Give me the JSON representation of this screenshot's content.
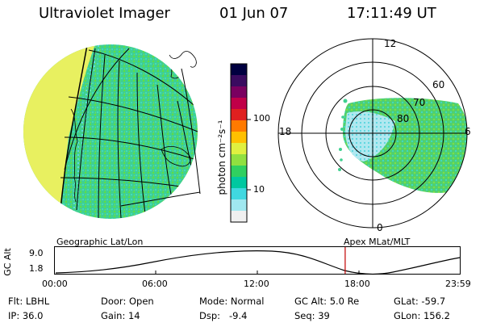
{
  "header": {
    "title": "Ultraviolet Imager",
    "date": "01 Jun 07",
    "time": "17:11:49 UT"
  },
  "colorbar": {
    "label": "photon cm⁻²s⁻¹",
    "ticks": [
      "100",
      "10"
    ],
    "colors": [
      "#000040",
      "#3a0b60",
      "#7a0060",
      "#c00048",
      "#e02020",
      "#ff7a00",
      "#ffc000",
      "#e0f040",
      "#90e040",
      "#30d060",
      "#00c8a0",
      "#40d8e0",
      "#a0e8f0",
      "#f0f0f0"
    ]
  },
  "globe_view": {
    "caption": "Geographic Lat/Lon",
    "dayside_color": "#e8f060",
    "aurora_color": "#40d090"
  },
  "polar_view": {
    "caption": "Apex  MLat/MLT",
    "mlt_labels": {
      "top": "12",
      "left": "18",
      "right": "6",
      "bottom": "0"
    },
    "lat_labels": [
      "60",
      "70",
      "80"
    ]
  },
  "orbit_plot": {
    "ylabel": "GC Alt",
    "yticks": [
      "9.0",
      "1.8"
    ],
    "xticks": [
      "00:00",
      "06:00",
      "12:00",
      "18:00",
      "23:59"
    ],
    "marker_color": "#c00000",
    "marker_fraction": 0.7165
  },
  "info": [
    [
      "Flt: LBHL",
      "Door: Open",
      "Mode: Normal",
      "GC Alt: 5.0 Re",
      "GLat: -59.7"
    ],
    [
      "IP: 36.0",
      "Gain: 14",
      "Dsp:   -9.4",
      "Seq: 39",
      "GLon: 156.2"
    ]
  ]
}
